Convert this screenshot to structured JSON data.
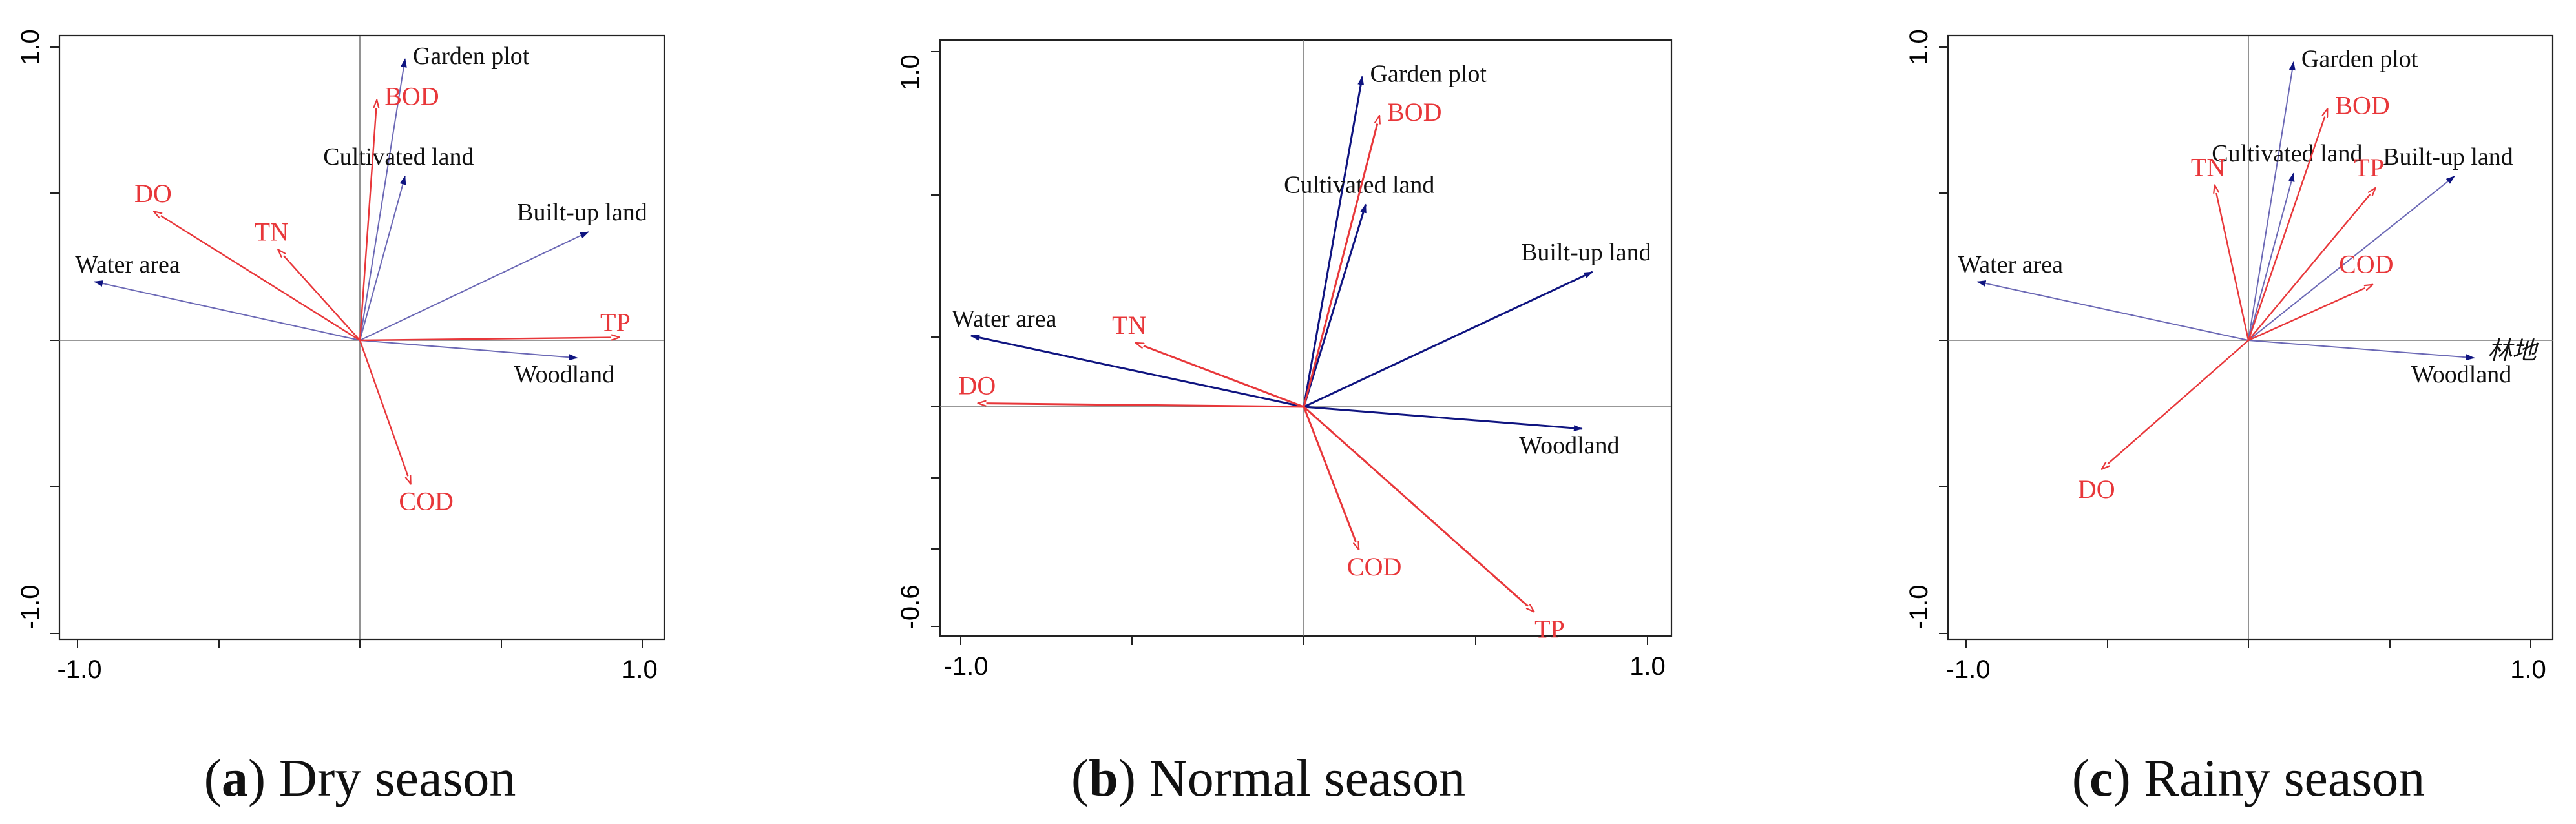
{
  "chart_data": [
    {
      "type": "biplot",
      "caption_letter": "a",
      "caption_text": "Dry season",
      "xlim": [
        -1.0,
        1.0
      ],
      "ylim": [
        -1.0,
        1.0
      ],
      "x_ticks": [
        "-1.0",
        "1.0"
      ],
      "y_ticks": [
        "1.0",
        "-1.0"
      ],
      "response_vectors": [
        {
          "name": "BOD",
          "x": 0.06,
          "y": 0.82
        },
        {
          "name": "DO",
          "x": -0.73,
          "y": 0.44
        },
        {
          "name": "TN",
          "x": -0.29,
          "y": 0.31
        },
        {
          "name": "TP",
          "x": 0.92,
          "y": 0.01
        },
        {
          "name": "COD",
          "x": 0.18,
          "y": -0.49
        }
      ],
      "explanatory_vectors": [
        {
          "name": "Garden plot",
          "x": 0.16,
          "y": 0.96
        },
        {
          "name": "Cultivated land",
          "x": 0.16,
          "y": 0.56
        },
        {
          "name": "Built-up land",
          "x": 0.81,
          "y": 0.37
        },
        {
          "name": "Water area",
          "x": -0.94,
          "y": 0.2
        },
        {
          "name": "Woodland",
          "x": 0.77,
          "y": -0.06
        }
      ]
    },
    {
      "type": "biplot",
      "caption_letter": "b",
      "caption_text": "Normal season",
      "xlim": [
        -1.0,
        1.0
      ],
      "ylim": [
        -0.6,
        1.0
      ],
      "x_ticks": [
        "-1.0",
        "1.0"
      ],
      "y_ticks": [
        "1.0",
        "-0.6"
      ],
      "response_vectors": [
        {
          "name": "BOD",
          "x": 0.22,
          "y": 0.82
        },
        {
          "name": "TN",
          "x": -0.49,
          "y": 0.18
        },
        {
          "name": "DO",
          "x": -0.95,
          "y": 0.01
        },
        {
          "name": "COD",
          "x": 0.16,
          "y": -0.39
        },
        {
          "name": "TP",
          "x": 0.67,
          "y": -0.56
        }
      ],
      "explanatory_vectors": [
        {
          "name": "Garden plot",
          "x": 0.17,
          "y": 0.93
        },
        {
          "name": "Cultivated land",
          "x": 0.18,
          "y": 0.57
        },
        {
          "name": "Built-up land",
          "x": 0.84,
          "y": 0.38
        },
        {
          "name": "Water area",
          "x": -0.97,
          "y": 0.2
        },
        {
          "name": "Woodland",
          "x": 0.81,
          "y": -0.06
        }
      ]
    },
    {
      "type": "biplot",
      "caption_letter": "c",
      "caption_text": "Rainy season",
      "xlim": [
        -1.0,
        1.0
      ],
      "ylim": [
        -1.0,
        1.0
      ],
      "x_ticks": [
        "-1.0",
        "1.0"
      ],
      "y_ticks": [
        "1.0",
        "-1.0"
      ],
      "response_vectors": [
        {
          "name": "TN",
          "x": -0.12,
          "y": 0.53
        },
        {
          "name": "BOD",
          "x": 0.28,
          "y": 0.79
        },
        {
          "name": "TP",
          "x": 0.45,
          "y": 0.52
        },
        {
          "name": "COD",
          "x": 0.44,
          "y": 0.19
        },
        {
          "name": "DO",
          "x": -0.52,
          "y": -0.44
        }
      ],
      "explanatory_vectors": [
        {
          "name": "Garden plot",
          "x": 0.16,
          "y": 0.95
        },
        {
          "name": "Cultivated land",
          "x": 0.16,
          "y": 0.57
        },
        {
          "name": "Built-up land",
          "x": 0.73,
          "y": 0.56
        },
        {
          "name": "Water area",
          "x": -0.96,
          "y": 0.2
        },
        {
          "name": "Woodland",
          "x": 0.8,
          "y": -0.06
        }
      ],
      "extra_label": "林地"
    }
  ],
  "colors": {
    "response": "#e8373a",
    "explanatory_a": "#6b68b5",
    "explanatory_b": "#0f1480",
    "axis": "#777777",
    "frame": "#222222"
  }
}
